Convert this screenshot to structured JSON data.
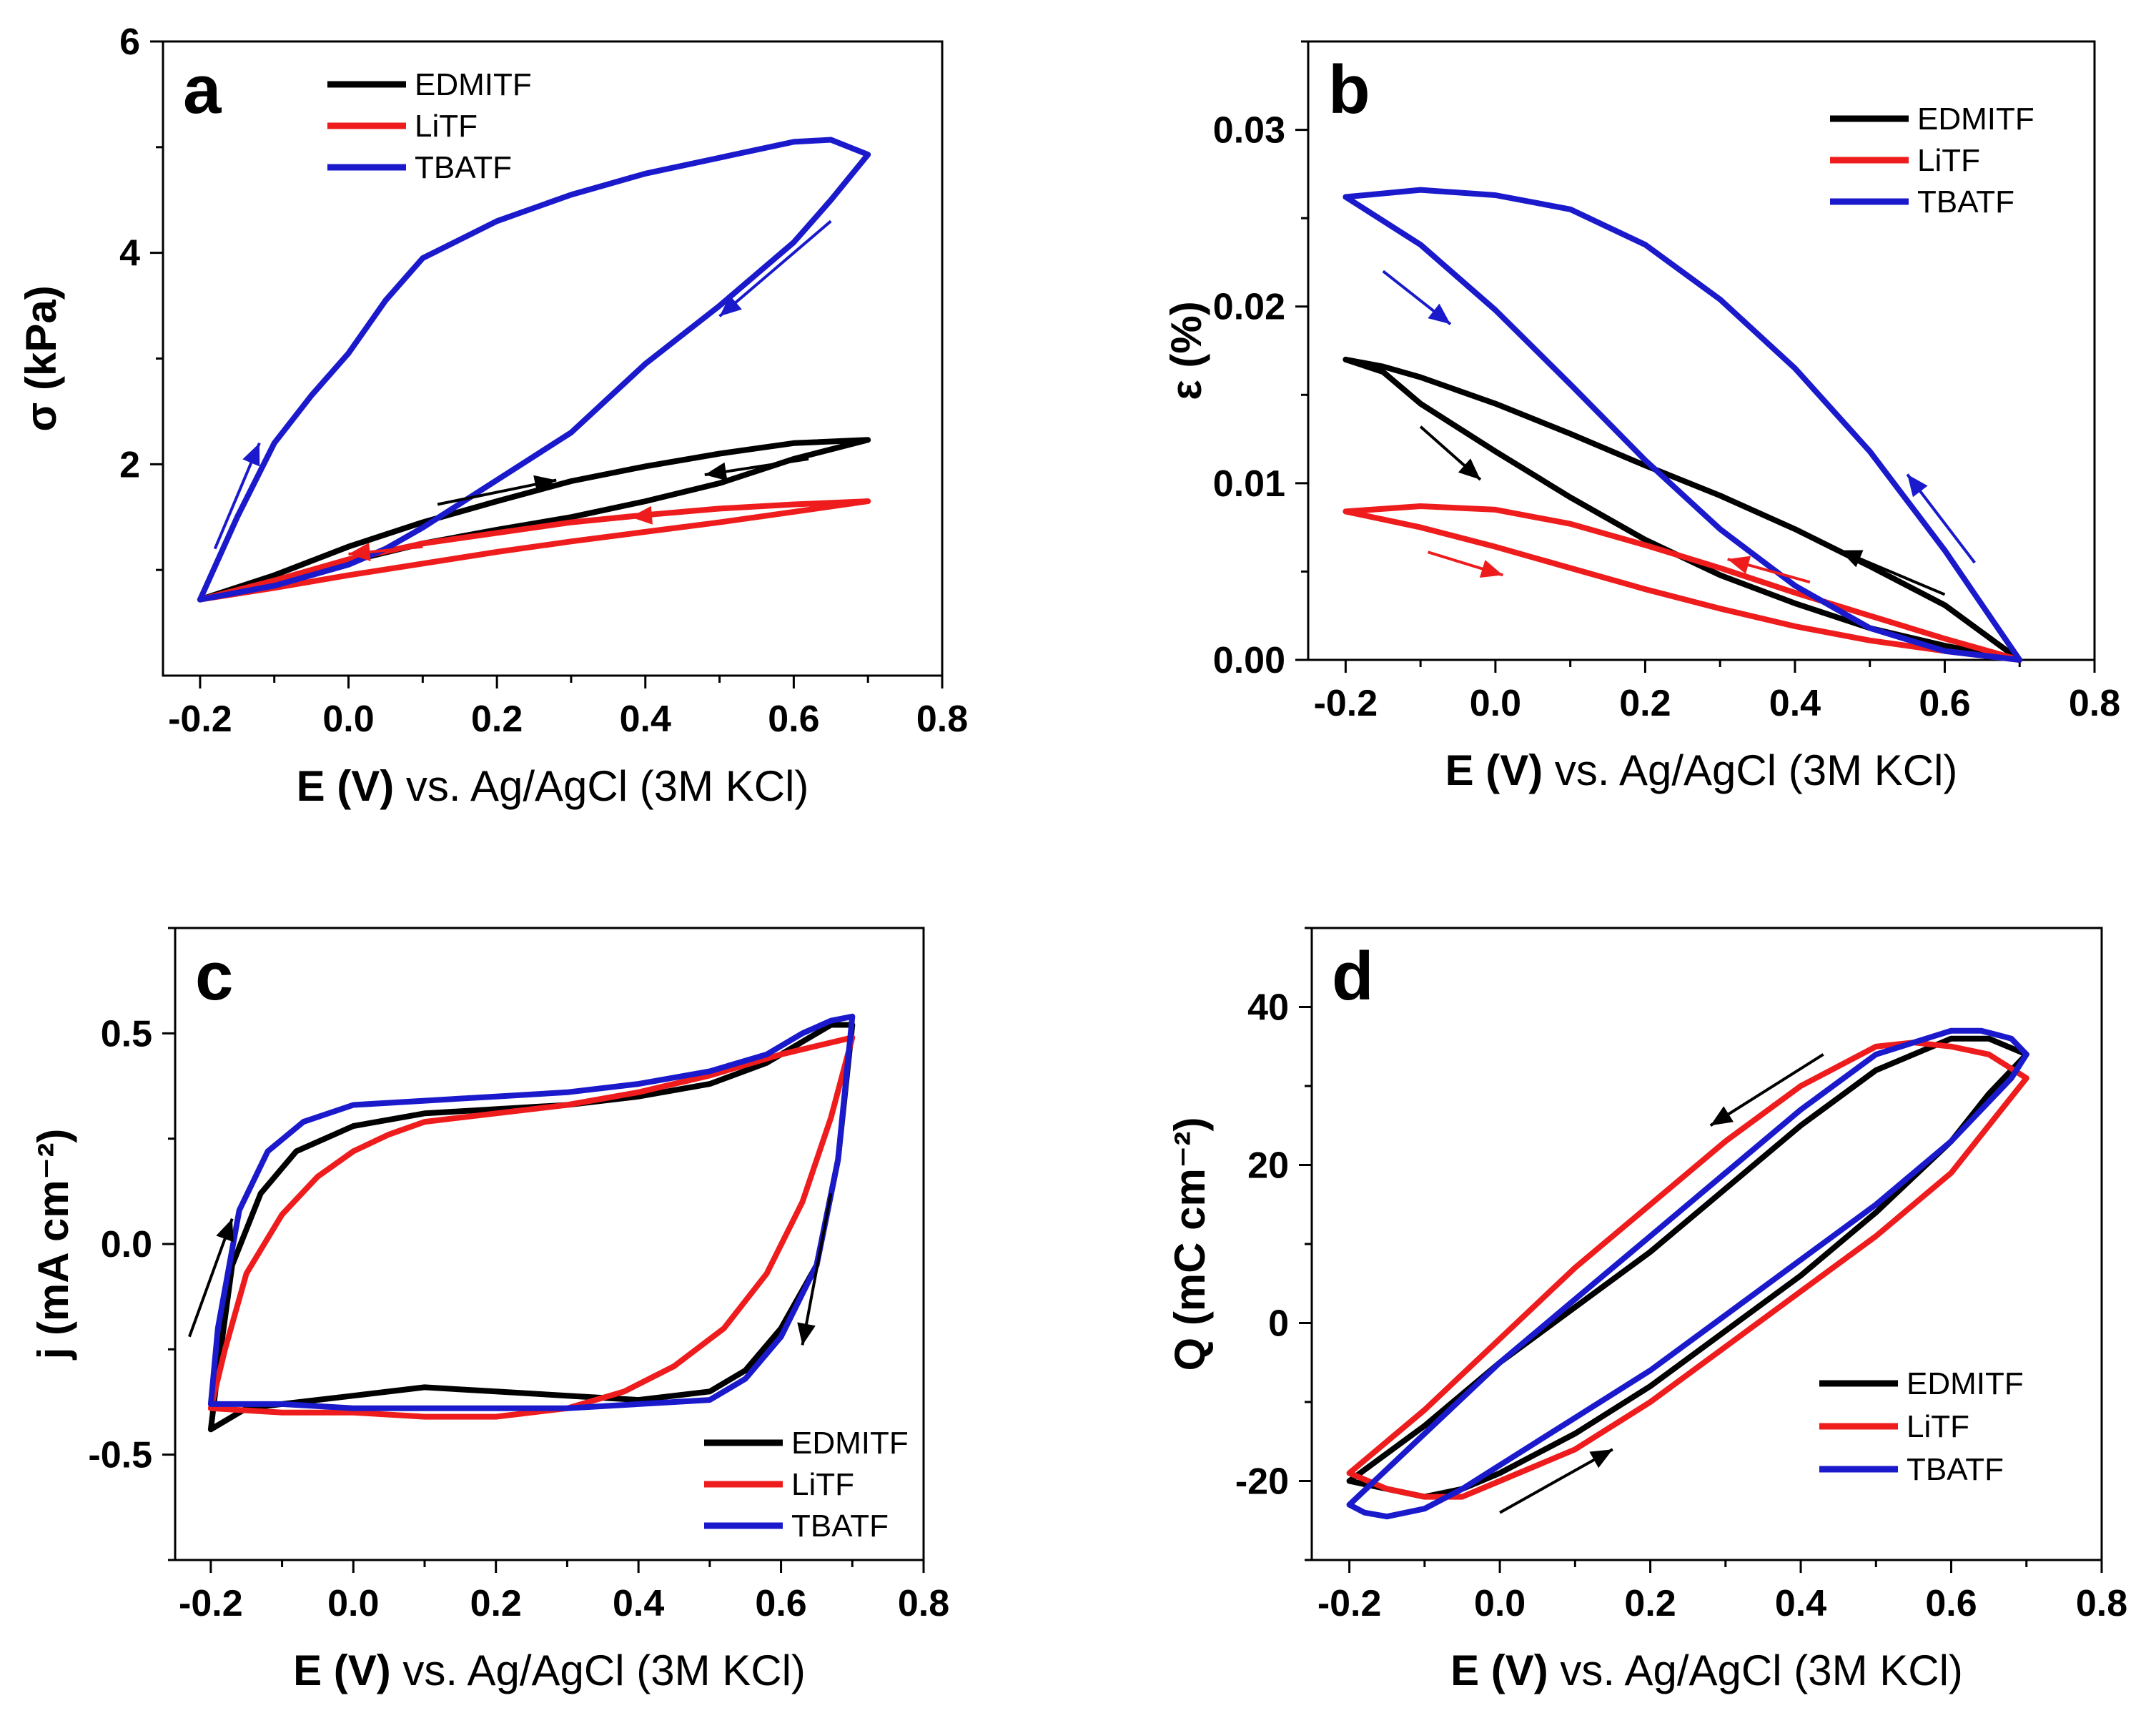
{
  "colors": {
    "EDMITF": "#000000",
    "LiTF": "#ee1c1c",
    "TBATF": "#1a1acc"
  },
  "chart_data": [
    {
      "type": "line",
      "panel": "a",
      "xlabel_bold": "E (V)",
      "xlabel_rest": " vs. Ag/AgCl (3M KCl)",
      "ylabel": "σ (kPa)",
      "xlim": [
        -0.25,
        0.8
      ],
      "ylim": [
        0,
        6
      ],
      "xticks": [
        -0.2,
        0.0,
        0.2,
        0.4,
        0.6,
        0.8
      ],
      "xtick_labels": [
        "-0.2",
        "0.0",
        "0.2",
        "0.4",
        "0.6",
        "0.8"
      ],
      "yticks": [
        2,
        4,
        6
      ],
      "ytick_labels": [
        "2",
        "4",
        "6"
      ],
      "legend": [
        "EDMITF",
        "LiTF",
        "TBATF"
      ],
      "legend_position": "top-left",
      "series": [
        {
          "name": "EDMITF",
          "x": [
            -0.2,
            -0.1,
            0.0,
            0.1,
            0.2,
            0.3,
            0.4,
            0.5,
            0.6,
            0.7,
            0.6,
            0.5,
            0.4,
            0.3,
            0.2,
            0.1,
            0.0,
            -0.1,
            -0.2
          ],
          "y": [
            0.72,
            0.95,
            1.22,
            1.45,
            1.65,
            1.84,
            1.98,
            2.1,
            2.2,
            2.23,
            2.05,
            1.82,
            1.65,
            1.5,
            1.38,
            1.25,
            1.08,
            0.88,
            0.72
          ]
        },
        {
          "name": "LiTF",
          "x": [
            -0.2,
            -0.1,
            0.0,
            0.1,
            0.2,
            0.3,
            0.4,
            0.5,
            0.6,
            0.7,
            0.6,
            0.5,
            0.4,
            0.3,
            0.2,
            0.1,
            0.0,
            -0.1,
            -0.2
          ],
          "y": [
            0.72,
            0.9,
            1.1,
            1.25,
            1.35,
            1.45,
            1.52,
            1.58,
            1.62,
            1.65,
            1.55,
            1.45,
            1.36,
            1.27,
            1.17,
            1.06,
            0.95,
            0.83,
            0.72
          ]
        },
        {
          "name": "TBATF",
          "x": [
            -0.2,
            -0.15,
            -0.1,
            -0.05,
            0.0,
            0.05,
            0.1,
            0.2,
            0.3,
            0.4,
            0.5,
            0.6,
            0.65,
            0.7,
            0.65,
            0.6,
            0.5,
            0.4,
            0.3,
            0.2,
            0.1,
            0.05,
            0.0,
            -0.1,
            -0.2
          ],
          "y": [
            0.72,
            1.5,
            2.2,
            2.65,
            3.05,
            3.55,
            3.95,
            4.3,
            4.55,
            4.75,
            4.9,
            5.05,
            5.07,
            4.93,
            4.5,
            4.1,
            3.5,
            2.95,
            2.3,
            1.85,
            1.4,
            1.2,
            1.05,
            0.85,
            0.72
          ]
        }
      ]
    },
    {
      "type": "line",
      "panel": "b",
      "xlabel_bold": "E (V)",
      "xlabel_rest": " vs. Ag/AgCl (3M KCl)",
      "ylabel": "ε (%)",
      "xlim": [
        -0.25,
        0.8
      ],
      "ylim": [
        0,
        0.035
      ],
      "xticks": [
        -0.2,
        0.0,
        0.2,
        0.4,
        0.6,
        0.8
      ],
      "xtick_labels": [
        "-0.2",
        "0.0",
        "0.2",
        "0.4",
        "0.6",
        "0.8"
      ],
      "yticks": [
        0.0,
        0.01,
        0.02,
        0.03
      ],
      "ytick_labels": [
        "0.00",
        "0.01",
        "0.02",
        "0.03"
      ],
      "legend": [
        "EDMITF",
        "LiTF",
        "TBATF"
      ],
      "legend_position": "top-right",
      "series": [
        {
          "name": "EDMITF",
          "x": [
            -0.2,
            -0.15,
            -0.1,
            0.0,
            0.1,
            0.2,
            0.3,
            0.4,
            0.5,
            0.6,
            0.7,
            0.6,
            0.5,
            0.4,
            0.3,
            0.2,
            0.1,
            0.0,
            -0.1,
            -0.15,
            -0.2
          ],
          "y": [
            0.017,
            0.0163,
            0.0145,
            0.0118,
            0.0092,
            0.0068,
            0.0048,
            0.0032,
            0.0018,
            0.0008,
            0.0,
            0.0031,
            0.0053,
            0.0074,
            0.0093,
            0.011,
            0.0128,
            0.0145,
            0.016,
            0.0166,
            0.017
          ]
        },
        {
          "name": "LiTF",
          "x": [
            -0.2,
            -0.1,
            0.0,
            0.1,
            0.2,
            0.3,
            0.4,
            0.5,
            0.6,
            0.7,
            0.6,
            0.5,
            0.4,
            0.3,
            0.2,
            0.1,
            0.0,
            -0.1,
            -0.2
          ],
          "y": [
            0.0084,
            0.0075,
            0.0064,
            0.0052,
            0.004,
            0.0029,
            0.0019,
            0.0011,
            0.0005,
            0.0,
            0.0012,
            0.0025,
            0.0038,
            0.0052,
            0.0065,
            0.0077,
            0.0085,
            0.0087,
            0.0084
          ]
        },
        {
          "name": "TBATF",
          "x": [
            -0.2,
            -0.1,
            0.0,
            0.1,
            0.2,
            0.3,
            0.4,
            0.5,
            0.6,
            0.7,
            0.6,
            0.5,
            0.4,
            0.3,
            0.2,
            0.1,
            0.0,
            -0.1,
            -0.2
          ],
          "y": [
            0.0262,
            0.0235,
            0.0198,
            0.0156,
            0.0113,
            0.0074,
            0.0042,
            0.0018,
            0.0005,
            0.0,
            0.0062,
            0.0118,
            0.0165,
            0.0204,
            0.0235,
            0.0255,
            0.0263,
            0.0266,
            0.0262
          ]
        }
      ]
    },
    {
      "type": "line",
      "panel": "c",
      "xlabel_bold": "E (V)",
      "xlabel_rest": " vs. Ag/AgCl (3M KCl)",
      "ylabel": "j (mA cm⁻²)",
      "xlim": [
        -0.25,
        0.8
      ],
      "ylim": [
        -0.75,
        0.75
      ],
      "xticks": [
        -0.2,
        0.0,
        0.2,
        0.4,
        0.6,
        0.8
      ],
      "xtick_labels": [
        "-0.2",
        "0.0",
        "0.2",
        "0.4",
        "0.6",
        "0.8"
      ],
      "yticks": [
        -0.5,
        0.0,
        0.5
      ],
      "ytick_labels": [
        "-0.5",
        "0.0",
        "0.5"
      ],
      "legend": [
        "EDMITF",
        "LiTF",
        "TBATF"
      ],
      "legend_position": "bottom-right",
      "series": [
        {
          "name": "EDMITF",
          "x": [
            -0.2,
            -0.19,
            -0.17,
            -0.13,
            -0.08,
            0.0,
            0.1,
            0.2,
            0.3,
            0.4,
            0.5,
            0.58,
            0.63,
            0.67,
            0.7,
            0.68,
            0.65,
            0.6,
            0.55,
            0.5,
            0.4,
            0.3,
            0.2,
            0.1,
            0.0,
            -0.1,
            -0.15,
            -0.2
          ],
          "y": [
            -0.44,
            -0.3,
            -0.05,
            0.12,
            0.22,
            0.28,
            0.31,
            0.32,
            0.33,
            0.35,
            0.38,
            0.43,
            0.48,
            0.52,
            0.52,
            0.2,
            -0.05,
            -0.2,
            -0.3,
            -0.35,
            -0.37,
            -0.36,
            -0.35,
            -0.34,
            -0.36,
            -0.38,
            -0.39,
            -0.44
          ]
        },
        {
          "name": "LiTF",
          "x": [
            -0.2,
            -0.18,
            -0.15,
            -0.1,
            -0.05,
            0.0,
            0.05,
            0.1,
            0.2,
            0.3,
            0.4,
            0.5,
            0.6,
            0.65,
            0.7,
            0.67,
            0.63,
            0.58,
            0.52,
            0.45,
            0.38,
            0.3,
            0.2,
            0.1,
            0.0,
            -0.1,
            -0.2
          ],
          "y": [
            -0.39,
            -0.25,
            -0.07,
            0.07,
            0.16,
            0.22,
            0.26,
            0.29,
            0.31,
            0.33,
            0.36,
            0.4,
            0.45,
            0.47,
            0.49,
            0.3,
            0.1,
            -0.07,
            -0.2,
            -0.29,
            -0.35,
            -0.39,
            -0.41,
            -0.41,
            -0.4,
            -0.4,
            -0.39
          ]
        },
        {
          "name": "TBATF",
          "x": [
            -0.2,
            -0.19,
            -0.16,
            -0.12,
            -0.07,
            0.0,
            0.1,
            0.2,
            0.3,
            0.4,
            0.5,
            0.58,
            0.63,
            0.67,
            0.7,
            0.68,
            0.65,
            0.6,
            0.55,
            0.5,
            0.4,
            0.3,
            0.2,
            0.1,
            0.0,
            -0.1,
            -0.2
          ],
          "y": [
            -0.38,
            -0.2,
            0.08,
            0.22,
            0.29,
            0.33,
            0.34,
            0.35,
            0.36,
            0.38,
            0.41,
            0.45,
            0.5,
            0.53,
            0.54,
            0.2,
            -0.05,
            -0.22,
            -0.32,
            -0.37,
            -0.38,
            -0.39,
            -0.39,
            -0.39,
            -0.39,
            -0.38,
            -0.38
          ]
        }
      ]
    },
    {
      "type": "line",
      "panel": "d",
      "xlabel_bold": "E (V)",
      "xlabel_rest": " vs. Ag/AgCl (3M KCl)",
      "ylabel": "Q (mC cm⁻²)",
      "xlim": [
        -0.25,
        0.8
      ],
      "ylim": [
        -30,
        50
      ],
      "xticks": [
        -0.2,
        0.0,
        0.2,
        0.4,
        0.6,
        0.8
      ],
      "xtick_labels": [
        "-0.2",
        "0.0",
        "0.2",
        "0.4",
        "0.6",
        "0.8"
      ],
      "yticks": [
        -20,
        0,
        20,
        40
      ],
      "ytick_labels": [
        "-20",
        "0",
        "20",
        "40"
      ],
      "legend": [
        "EDMITF",
        "LiTF",
        "TBATF"
      ],
      "legend_position": "bottom-right",
      "series": [
        {
          "name": "EDMITF",
          "x": [
            -0.2,
            -0.15,
            -0.1,
            -0.05,
            0.0,
            0.1,
            0.2,
            0.3,
            0.4,
            0.5,
            0.6,
            0.65,
            0.7,
            0.65,
            0.6,
            0.5,
            0.4,
            0.3,
            0.2,
            0.1,
            0.0,
            -0.1,
            -0.2
          ],
          "y": [
            -20,
            -21,
            -22,
            -21,
            -19,
            -14,
            -8,
            -1,
            6,
            14,
            23,
            29,
            34,
            36,
            36,
            32,
            25,
            17,
            9,
            2,
            -5,
            -13,
            -20
          ]
        },
        {
          "name": "LiTF",
          "x": [
            -0.2,
            -0.15,
            -0.1,
            -0.05,
            0.0,
            0.1,
            0.2,
            0.3,
            0.4,
            0.5,
            0.6,
            0.65,
            0.7,
            0.65,
            0.6,
            0.55,
            0.5,
            0.4,
            0.3,
            0.2,
            0.1,
            0.0,
            -0.1,
            -0.2
          ],
          "y": [
            -19,
            -21,
            -22,
            -22,
            -20,
            -16,
            -10,
            -3,
            4,
            11,
            19,
            25,
            31,
            34,
            35,
            35.5,
            35,
            30,
            23,
            15,
            7,
            -2,
            -11,
            -19
          ]
        },
        {
          "name": "TBATF",
          "x": [
            -0.2,
            -0.18,
            -0.15,
            -0.1,
            -0.05,
            0.0,
            0.1,
            0.2,
            0.3,
            0.4,
            0.5,
            0.6,
            0.68,
            0.7,
            0.68,
            0.64,
            0.6,
            0.5,
            0.4,
            0.3,
            0.2,
            0.1,
            0.0,
            -0.1,
            -0.2
          ],
          "y": [
            -23,
            -24,
            -24.5,
            -23.5,
            -21,
            -18,
            -12,
            -6,
            1,
            8,
            15,
            23,
            31,
            34,
            36,
            37,
            37,
            34,
            27,
            19,
            11,
            3,
            -5,
            -14,
            -23
          ]
        }
      ]
    }
  ]
}
